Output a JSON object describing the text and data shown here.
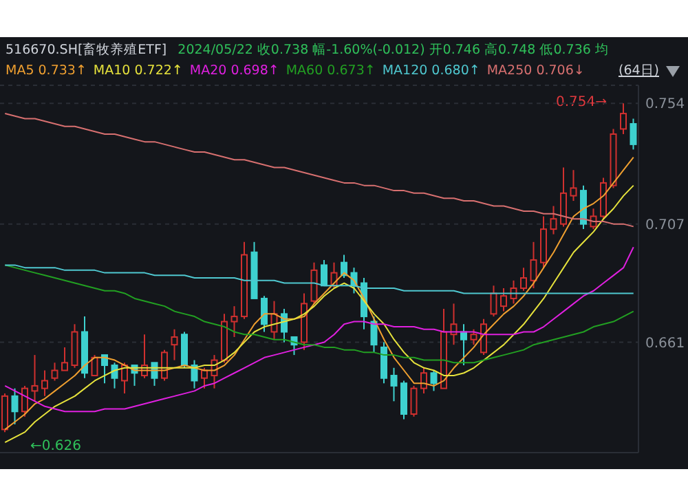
{
  "chart_data": {
    "type": "candlestick",
    "title": "516670.SH[畜牧养殖ETF]",
    "subtitle": "2024/05/22  收0.738  幅-1.60%(-0.012)  开0.746  高0.748  低0.736  均",
    "categories": [
      null,
      null,
      null,
      null,
      null,
      null,
      null,
      null,
      null,
      null,
      null,
      null,
      null,
      null,
      null,
      null,
      null,
      null,
      null,
      null,
      null,
      null,
      null,
      null,
      null,
      null,
      null,
      null,
      null,
      null,
      null,
      null,
      null,
      null,
      null,
      null,
      null,
      null,
      null,
      null,
      null,
      null,
      null,
      null,
      null,
      null,
      null,
      null,
      null,
      null,
      null,
      null,
      null,
      null,
      null,
      null,
      null,
      null,
      null,
      null,
      null,
      null,
      null,
      null
    ],
    "ohlc": [
      [
        0.627,
        0.641,
        0.626,
        0.64
      ],
      [
        0.64,
        0.643,
        0.629,
        0.634
      ],
      [
        0.634,
        0.644,
        0.632,
        0.643
      ],
      [
        0.642,
        0.656,
        0.638,
        0.644
      ],
      [
        0.643,
        0.65,
        0.64,
        0.646
      ],
      [
        0.647,
        0.653,
        0.646,
        0.65
      ],
      [
        0.65,
        0.659,
        0.65,
        0.653
      ],
      [
        0.652,
        0.668,
        0.651,
        0.665
      ],
      [
        0.665,
        0.671,
        0.647,
        0.649
      ],
      [
        0.648,
        0.656,
        0.648,
        0.655
      ],
      [
        0.656,
        0.656,
        0.645,
        0.652
      ],
      [
        0.652,
        0.653,
        0.643,
        0.647
      ],
      [
        0.646,
        0.653,
        0.641,
        0.652
      ],
      [
        0.652,
        0.652,
        0.644,
        0.649
      ],
      [
        0.648,
        0.664,
        0.647,
        0.652
      ],
      [
        0.653,
        0.653,
        0.644,
        0.647
      ],
      [
        0.647,
        0.658,
        0.646,
        0.657
      ],
      [
        0.66,
        0.666,
        0.654,
        0.663
      ],
      [
        0.664,
        0.665,
        0.651,
        0.652
      ],
      [
        0.652,
        0.654,
        0.643,
        0.646
      ],
      [
        0.647,
        0.651,
        0.643,
        0.65
      ],
      [
        0.648,
        0.656,
        0.643,
        0.654
      ],
      [
        0.654,
        0.672,
        0.653,
        0.669
      ],
      [
        0.669,
        0.675,
        0.663,
        0.671
      ],
      [
        0.671,
        0.7,
        0.67,
        0.695
      ],
      [
        0.696,
        0.7,
        0.678,
        0.678
      ],
      [
        0.678,
        0.679,
        0.665,
        0.668
      ],
      [
        0.665,
        0.677,
        0.662,
        0.672
      ],
      [
        0.672,
        0.674,
        0.661,
        0.665
      ],
      [
        0.663,
        0.663,
        0.656,
        0.66
      ],
      [
        0.661,
        0.68,
        0.658,
        0.676
      ],
      [
        0.677,
        0.692,
        0.676,
        0.689
      ],
      [
        0.691,
        0.693,
        0.683,
        0.683
      ],
      [
        0.683,
        0.692,
        0.682,
        0.688
      ],
      [
        0.692,
        0.695,
        0.686,
        0.687
      ],
      [
        0.688,
        0.69,
        0.68,
        0.683
      ],
      [
        0.684,
        0.686,
        0.666,
        0.671
      ],
      [
        0.669,
        0.671,
        0.657,
        0.66
      ],
      [
        0.659,
        0.661,
        0.645,
        0.647
      ],
      [
        0.648,
        0.651,
        0.638,
        0.644
      ],
      [
        0.645,
        0.646,
        0.631,
        0.633
      ],
      [
        0.633,
        0.644,
        0.632,
        0.643
      ],
      [
        0.643,
        0.651,
        0.641,
        0.649
      ],
      [
        0.649,
        0.65,
        0.642,
        0.645
      ],
      [
        0.643,
        0.674,
        0.643,
        0.665
      ],
      [
        0.664,
        0.676,
        0.66,
        0.668
      ],
      [
        0.665,
        0.668,
        0.652,
        0.662
      ],
      [
        0.662,
        0.666,
        0.66,
        0.664
      ],
      [
        0.657,
        0.67,
        0.656,
        0.668
      ],
      [
        0.672,
        0.683,
        0.671,
        0.68
      ],
      [
        0.675,
        0.682,
        0.673,
        0.679
      ],
      [
        0.678,
        0.685,
        0.676,
        0.682
      ],
      [
        0.682,
        0.69,
        0.681,
        0.686
      ],
      [
        0.685,
        0.7,
        0.682,
        0.693
      ],
      [
        0.692,
        0.71,
        0.69,
        0.705
      ],
      [
        0.705,
        0.714,
        0.703,
        0.709
      ],
      [
        0.707,
        0.729,
        0.706,
        0.719
      ],
      [
        0.718,
        0.728,
        0.716,
        0.721
      ],
      [
        0.72,
        0.722,
        0.705,
        0.707
      ],
      [
        0.706,
        0.713,
        0.705,
        0.71
      ],
      [
        0.71,
        0.725,
        0.709,
        0.723
      ],
      [
        0.722,
        0.744,
        0.721,
        0.742
      ],
      [
        0.744,
        0.754,
        0.742,
        0.75
      ],
      [
        0.746,
        0.748,
        0.736,
        0.738
      ]
    ],
    "colors": [
      "#d0302f",
      "#3ed1cf",
      "#d0302f",
      "#d0302f",
      "#d0302f",
      "#d0302f",
      "#d0302f",
      "#d0302f",
      "#3ed1cf",
      "#d0302f",
      "#3ed1cf",
      "#3ed1cf",
      "#d0302f",
      "#3ed1cf",
      "#d0302f",
      "#3ed1cf",
      "#d0302f",
      "#d0302f",
      "#3ed1cf",
      "#3ed1cf",
      "#d0302f",
      "#d0302f",
      "#d0302f",
      "#d0302f",
      "#d0302f",
      "#3ed1cf",
      "#3ed1cf",
      "#d0302f",
      "#3ed1cf",
      "#3ed1cf",
      "#d0302f",
      "#d0302f",
      "#3ed1cf",
      "#d0302f",
      "#3ed1cf",
      "#3ed1cf",
      "#3ed1cf",
      "#3ed1cf",
      "#3ed1cf",
      "#3ed1cf",
      "#3ed1cf",
      "#d0302f",
      "#d0302f",
      "#3ed1cf",
      "#d0302f",
      "#d0302f",
      "#3ed1cf",
      "#d0302f",
      "#d0302f",
      "#d0302f",
      "#d0302f",
      "#d0302f",
      "#d0302f",
      "#d0302f",
      "#d0302f",
      "#d0302f",
      "#d0302f",
      "#d0302f",
      "#3ed1cf",
      "#d0302f",
      "#d0302f",
      "#d0302f",
      "#d0302f",
      "#3ed1cf"
    ],
    "series": [
      {
        "name": "MA5 0.733↑",
        "type": "line",
        "color": "#f0a030",
        "values": [
          0.627,
          0.63,
          0.633,
          0.637,
          0.639,
          0.642,
          0.645,
          0.648,
          0.652,
          0.655,
          0.655,
          0.654,
          0.652,
          0.65,
          0.65,
          0.65,
          0.65,
          0.651,
          0.652,
          0.651,
          0.65,
          0.65,
          0.652,
          0.656,
          0.662,
          0.668,
          0.672,
          0.672,
          0.67,
          0.67,
          0.671,
          0.676,
          0.68,
          0.684,
          0.688,
          0.685,
          0.678,
          0.67,
          0.662,
          0.655,
          0.65,
          0.645,
          0.645,
          0.644,
          0.646,
          0.651,
          0.655,
          0.659,
          0.664,
          0.668,
          0.672,
          0.675,
          0.679,
          0.684,
          0.69,
          0.696,
          0.703,
          0.71,
          0.713,
          0.715,
          0.718,
          0.723,
          0.728,
          0.733
        ]
      },
      {
        "name": "MA10 0.722↑",
        "type": "line",
        "color": "#e6e23c",
        "values": [
          0.622,
          0.624,
          0.626,
          0.63,
          0.633,
          0.636,
          0.638,
          0.64,
          0.643,
          0.646,
          0.648,
          0.65,
          0.651,
          0.651,
          0.651,
          0.651,
          0.651,
          0.651,
          0.651,
          0.651,
          0.652,
          0.652,
          0.654,
          0.657,
          0.661,
          0.665,
          0.667,
          0.668,
          0.669,
          0.67,
          0.672,
          0.675,
          0.679,
          0.682,
          0.684,
          0.682,
          0.677,
          0.672,
          0.668,
          0.662,
          0.657,
          0.653,
          0.651,
          0.65,
          0.648,
          0.648,
          0.649,
          0.651,
          0.654,
          0.657,
          0.66,
          0.664,
          0.668,
          0.673,
          0.678,
          0.684,
          0.69,
          0.696,
          0.7,
          0.704,
          0.709,
          0.713,
          0.718,
          0.722
        ]
      },
      {
        "name": "MA20 0.698↑",
        "type": "line",
        "color": "#e020e0",
        "values": [
          0.644,
          0.642,
          0.64,
          0.638,
          0.636,
          0.635,
          0.634,
          0.634,
          0.634,
          0.634,
          0.635,
          0.635,
          0.635,
          0.636,
          0.637,
          0.638,
          0.639,
          0.64,
          0.641,
          0.642,
          0.644,
          0.645,
          0.647,
          0.649,
          0.651,
          0.653,
          0.655,
          0.656,
          0.657,
          0.658,
          0.659,
          0.66,
          0.661,
          0.664,
          0.668,
          0.669,
          0.669,
          0.668,
          0.668,
          0.667,
          0.667,
          0.667,
          0.666,
          0.666,
          0.665,
          0.665,
          0.665,
          0.665,
          0.664,
          0.664,
          0.664,
          0.664,
          0.665,
          0.665,
          0.667,
          0.67,
          0.673,
          0.676,
          0.679,
          0.681,
          0.684,
          0.687,
          0.69,
          0.698
        ]
      },
      {
        "name": "MA60 0.673↑",
        "type": "line",
        "color": "#22a022",
        "values": [
          0.691,
          0.69,
          0.689,
          0.688,
          0.687,
          0.686,
          0.685,
          0.684,
          0.683,
          0.682,
          0.681,
          0.681,
          0.68,
          0.678,
          0.677,
          0.676,
          0.675,
          0.673,
          0.672,
          0.671,
          0.669,
          0.668,
          0.667,
          0.665,
          0.664,
          0.664,
          0.663,
          0.662,
          0.662,
          0.661,
          0.66,
          0.66,
          0.659,
          0.659,
          0.658,
          0.658,
          0.657,
          0.657,
          0.656,
          0.656,
          0.655,
          0.655,
          0.654,
          0.654,
          0.654,
          0.653,
          0.653,
          0.653,
          0.654,
          0.655,
          0.656,
          0.657,
          0.658,
          0.66,
          0.661,
          0.662,
          0.663,
          0.664,
          0.665,
          0.667,
          0.668,
          0.669,
          0.671,
          0.673
        ]
      },
      {
        "name": "MA120 0.680↑",
        "type": "line",
        "color": "#4fc8d0",
        "values": [
          0.691,
          0.691,
          0.69,
          0.69,
          0.69,
          0.69,
          0.689,
          0.689,
          0.689,
          0.689,
          0.688,
          0.688,
          0.688,
          0.688,
          0.688,
          0.687,
          0.687,
          0.687,
          0.687,
          0.686,
          0.686,
          0.686,
          0.686,
          0.686,
          0.685,
          0.685,
          0.685,
          0.685,
          0.684,
          0.684,
          0.684,
          0.684,
          0.683,
          0.683,
          0.683,
          0.683,
          0.682,
          0.682,
          0.682,
          0.682,
          0.681,
          0.681,
          0.681,
          0.681,
          0.681,
          0.681,
          0.68,
          0.68,
          0.68,
          0.68,
          0.68,
          0.68,
          0.68,
          0.68,
          0.68,
          0.68,
          0.68,
          0.68,
          0.68,
          0.68,
          0.68,
          0.68,
          0.68,
          0.68
        ]
      },
      {
        "name": "MA250 0.706↓",
        "type": "line",
        "color": "#d87070",
        "values": [
          0.75,
          0.749,
          0.748,
          0.748,
          0.747,
          0.746,
          0.745,
          0.745,
          0.744,
          0.743,
          0.742,
          0.742,
          0.741,
          0.74,
          0.739,
          0.739,
          0.738,
          0.737,
          0.736,
          0.735,
          0.735,
          0.734,
          0.733,
          0.732,
          0.732,
          0.731,
          0.73,
          0.729,
          0.729,
          0.728,
          0.727,
          0.726,
          0.725,
          0.724,
          0.723,
          0.723,
          0.722,
          0.722,
          0.721,
          0.72,
          0.72,
          0.719,
          0.719,
          0.718,
          0.717,
          0.717,
          0.716,
          0.716,
          0.715,
          0.714,
          0.714,
          0.713,
          0.712,
          0.712,
          0.711,
          0.711,
          0.71,
          0.709,
          0.709,
          0.708,
          0.708,
          0.707,
          0.707,
          0.706
        ]
      }
    ],
    "ylim": [
      0.618,
      0.761
    ],
    "yticks": [
      0.754,
      0.707,
      0.661
    ],
    "grid": "y",
    "legend": "top left",
    "tick_labels": "y",
    "marker": "none",
    "annotations": [
      "(64日)",
      "0.754→",
      "←0.626"
    ]
  }
}
